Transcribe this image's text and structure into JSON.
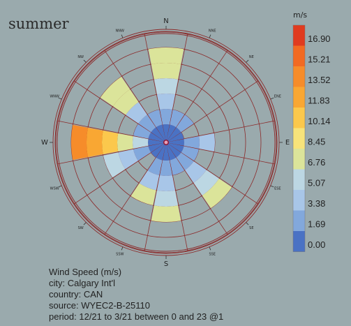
{
  "title": "summer",
  "info": {
    "heading": "Wind Speed (m/s)",
    "city": "city: Calgary Int'l",
    "country": "country: CAN",
    "source": "source: WYEC2-B-25110",
    "period": "period: 12/21 to 3/21 between 0 and 23 @1"
  },
  "colors": {
    "background": "#9aaaad",
    "grid": "#8b2a2a",
    "center": "#8b1a3a"
  },
  "chart_data": {
    "type": "wind-rose",
    "legend_title": "m/s",
    "legend_ticks": [
      "16.90",
      "15.21",
      "13.52",
      "11.83",
      "10.14",
      "8.45",
      "6.76",
      "5.07",
      "3.38",
      "1.69",
      "0.00"
    ],
    "legend_colors": [
      "#e03b1f",
      "#f26a22",
      "#f68c2a",
      "#f9a733",
      "#fbc84c",
      "#f7e37a",
      "#dbe49a",
      "#bcd7e3",
      "#a8c6e8",
      "#82a8dc",
      "#4a72c4"
    ],
    "directions": [
      "N",
      "NNE",
      "NE",
      "ENE",
      "E",
      "ESE",
      "SE",
      "SSE",
      "S",
      "SSW",
      "SW",
      "WSW",
      "W",
      "WNW",
      "NW",
      "NNW"
    ],
    "radial_max": 6,
    "wedge_rings": [
      [
        0,
        1,
        2,
        3,
        4,
        4
      ],
      [
        0,
        1
      ],
      [
        0,
        1
      ],
      [
        0
      ],
      [
        0,
        1,
        2
      ],
      [
        0,
        1
      ],
      [
        0,
        1,
        2,
        3,
        4
      ],
      [
        0,
        1
      ],
      [
        0,
        1,
        2,
        3,
        4
      ],
      [
        0,
        1,
        2,
        4
      ],
      [
        0
      ],
      [
        0,
        1,
        2,
        3
      ],
      [
        0,
        3,
        4,
        6,
        7,
        8
      ],
      [
        0,
        1
      ],
      [
        0,
        1,
        2,
        4,
        4
      ],
      [
        0,
        1
      ]
    ]
  }
}
